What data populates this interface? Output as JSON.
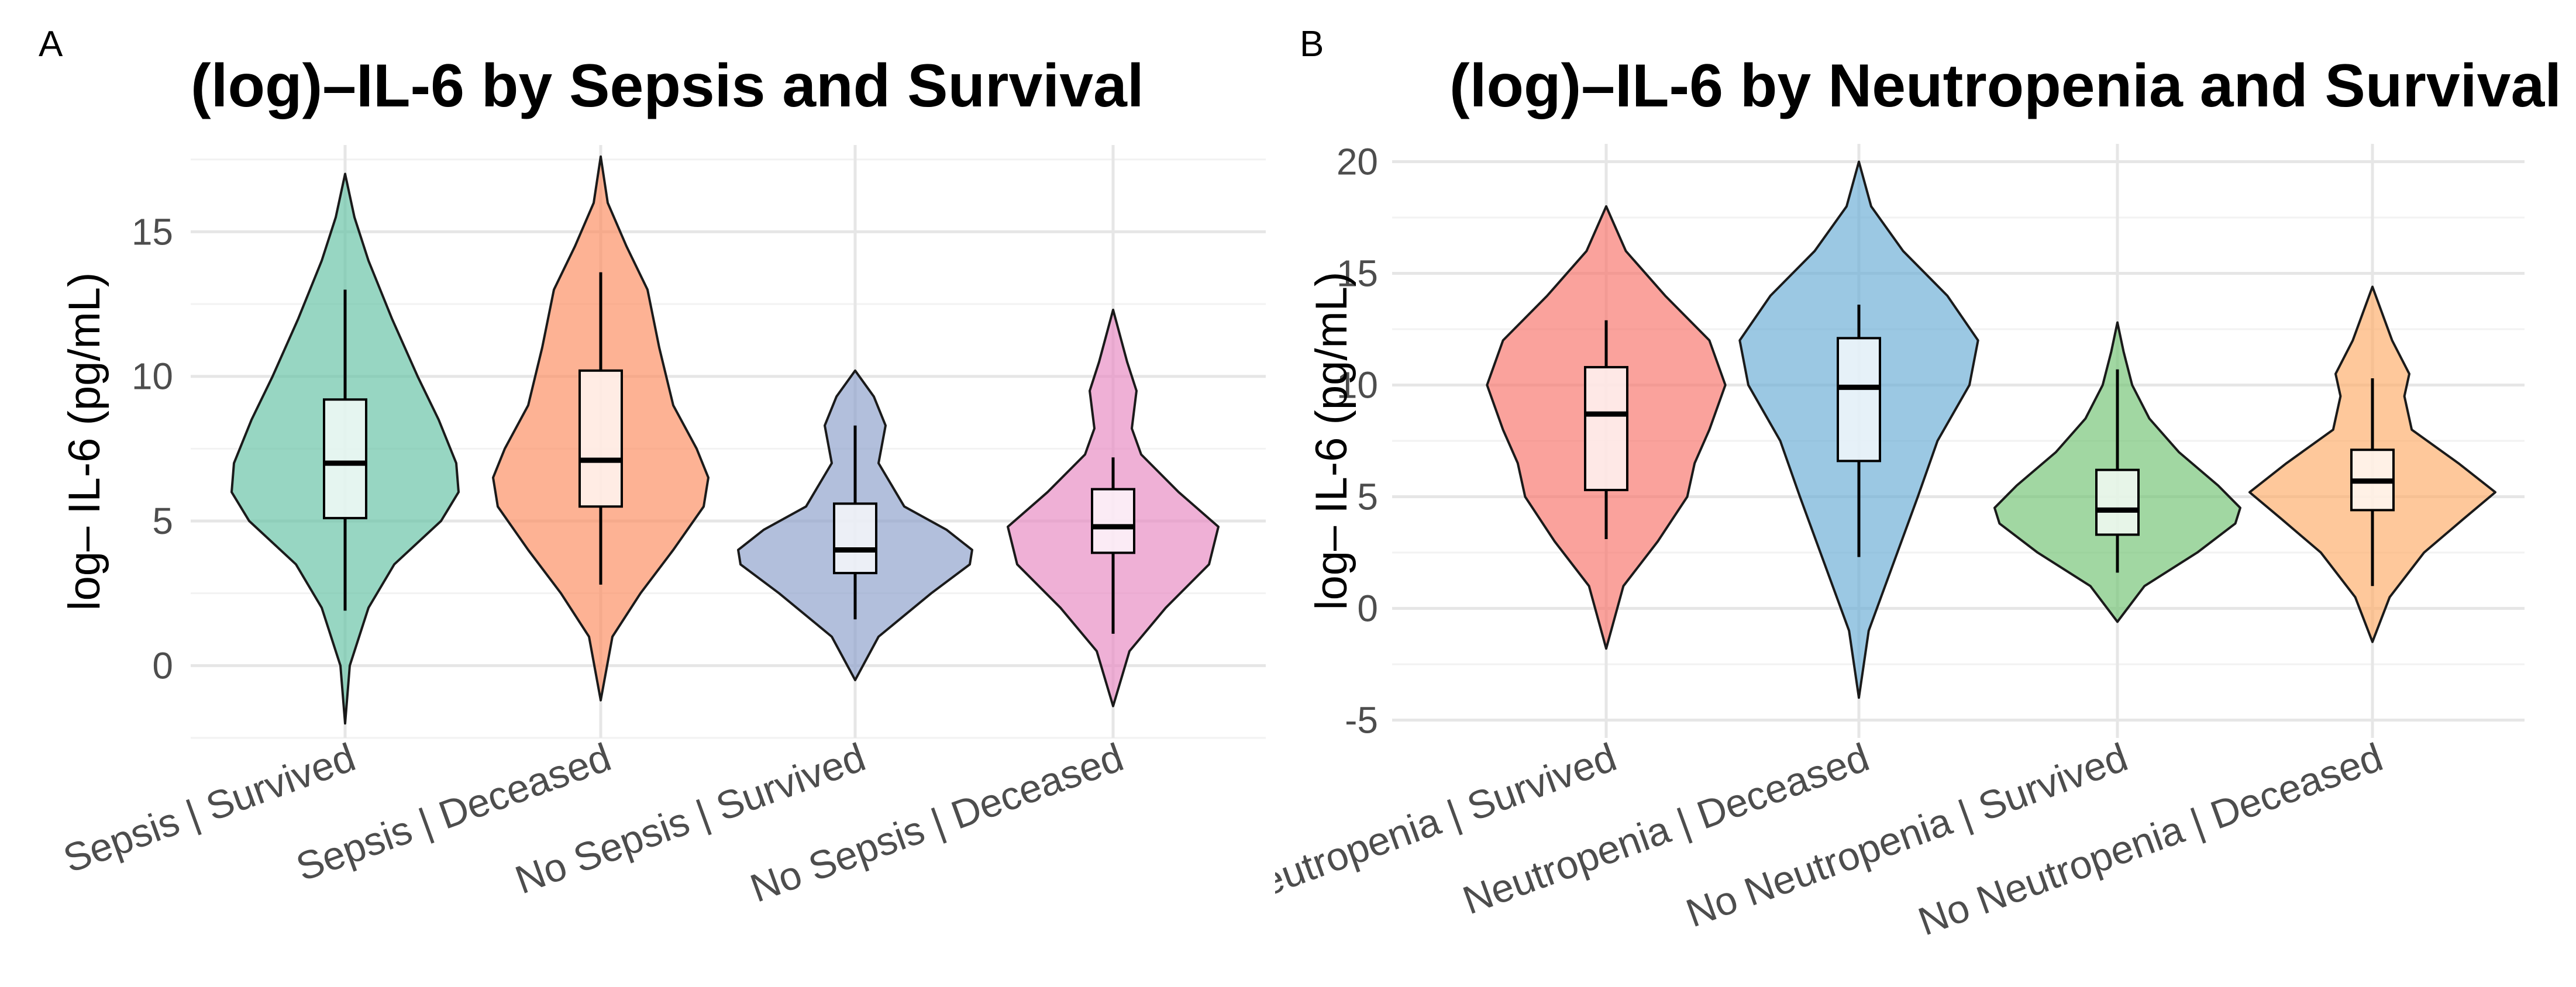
{
  "chart_data": [
    {
      "panel": "A",
      "type": "violin",
      "title": "(log)–IL-6 by Sepsis and Survival",
      "xlabel": "",
      "ylabel": "log– IL-6 (pg/mL)",
      "ylim": [
        -2.5,
        18
      ],
      "yticks": [
        0,
        5,
        10,
        15
      ],
      "ytick_labels": [
        "0",
        "5",
        "10",
        "15"
      ],
      "grid": true,
      "categories": [
        "Sepsis | Survived",
        "Sepsis | Deceased",
        "No Sepsis | Survived",
        "No Sepsis | Deceased"
      ],
      "colors": [
        "#66c2a5",
        "#fc8d62",
        "#8da0cb",
        "#e78ac3"
      ],
      "violins": [
        {
          "min": -2.0,
          "max": 17.0,
          "profile": [
            [
              -2.0,
              0.0
            ],
            [
              0.0,
              0.04
            ],
            [
              2.0,
              0.2
            ],
            [
              3.5,
              0.42
            ],
            [
              5.0,
              0.82
            ],
            [
              6.0,
              0.97
            ],
            [
              7.0,
              0.95
            ],
            [
              8.5,
              0.8
            ],
            [
              10.0,
              0.62
            ],
            [
              12.0,
              0.4
            ],
            [
              14.0,
              0.2
            ],
            [
              15.5,
              0.08
            ],
            [
              17.0,
              0.0
            ]
          ]
        },
        {
          "min": -1.2,
          "max": 17.6,
          "profile": [
            [
              -1.2,
              0.0
            ],
            [
              1.0,
              0.1
            ],
            [
              2.5,
              0.34
            ],
            [
              4.0,
              0.62
            ],
            [
              5.5,
              0.88
            ],
            [
              6.5,
              0.92
            ],
            [
              7.5,
              0.82
            ],
            [
              9.0,
              0.62
            ],
            [
              11.0,
              0.5
            ],
            [
              13.0,
              0.4
            ],
            [
              14.5,
              0.22
            ],
            [
              16.0,
              0.06
            ],
            [
              17.6,
              0.0
            ]
          ]
        },
        {
          "min": -0.5,
          "max": 10.2,
          "profile": [
            [
              -0.5,
              0.0
            ],
            [
              1.0,
              0.2
            ],
            [
              2.5,
              0.65
            ],
            [
              3.5,
              0.98
            ],
            [
              4.0,
              1.0
            ],
            [
              4.7,
              0.78
            ],
            [
              5.5,
              0.42
            ],
            [
              7.0,
              0.2
            ],
            [
              8.3,
              0.26
            ],
            [
              9.3,
              0.16
            ],
            [
              10.2,
              0.0
            ]
          ]
        },
        {
          "min": -1.4,
          "max": 12.3,
          "profile": [
            [
              -1.4,
              0.0
            ],
            [
              0.5,
              0.14
            ],
            [
              2.0,
              0.45
            ],
            [
              3.5,
              0.82
            ],
            [
              4.8,
              0.9
            ],
            [
              6.0,
              0.56
            ],
            [
              7.3,
              0.24
            ],
            [
              8.2,
              0.16
            ],
            [
              9.5,
              0.2
            ],
            [
              10.5,
              0.12
            ],
            [
              12.3,
              0.0
            ]
          ]
        }
      ],
      "boxes": [
        {
          "q1": 5.1,
          "median": 7.0,
          "q3": 9.2,
          "whisker_low": 1.9,
          "whisker_high": 13.0
        },
        {
          "q1": 5.5,
          "median": 7.1,
          "q3": 10.2,
          "whisker_low": 2.8,
          "whisker_high": 13.6
        },
        {
          "q1": 3.2,
          "median": 4.0,
          "q3": 5.6,
          "whisker_low": 1.6,
          "whisker_high": 8.3
        },
        {
          "q1": 3.9,
          "median": 4.8,
          "q3": 6.1,
          "whisker_low": 1.1,
          "whisker_high": 7.2
        }
      ]
    },
    {
      "panel": "B",
      "type": "violin",
      "title": "(log)–IL-6 by Neutropenia and Survival",
      "xlabel": "",
      "ylabel": "log– IL-6 (pg/mL)",
      "ylim": [
        -5.8,
        20.8
      ],
      "yticks": [
        -5,
        0,
        5,
        10,
        15,
        20
      ],
      "ytick_labels": [
        "-5",
        "0",
        "5",
        "10",
        "15",
        "20"
      ],
      "grid": true,
      "categories": [
        "Neutropenia | Survived",
        "Neutropenia | Deceased",
        "No Neutropenia | Survived",
        "No Neutropenia | Deceased"
      ],
      "colors": [
        "#f8766d",
        "#6baed6",
        "#74c476",
        "#fdae6b"
      ],
      "violins": [
        {
          "min": -1.8,
          "max": 18.0,
          "profile": [
            [
              -1.8,
              0.0
            ],
            [
              1.0,
              0.14
            ],
            [
              3.0,
              0.42
            ],
            [
              5.0,
              0.66
            ],
            [
              6.5,
              0.72
            ],
            [
              8.0,
              0.84
            ],
            [
              10.0,
              0.97
            ],
            [
              12.0,
              0.84
            ],
            [
              14.0,
              0.48
            ],
            [
              16.0,
              0.16
            ],
            [
              18.0,
              0.0
            ]
          ]
        },
        {
          "min": -4.0,
          "max": 20.0,
          "profile": [
            [
              -4.0,
              0.0
            ],
            [
              -1.0,
              0.08
            ],
            [
              2.0,
              0.28
            ],
            [
              5.0,
              0.48
            ],
            [
              7.5,
              0.64
            ],
            [
              10.0,
              0.9
            ],
            [
              12.0,
              0.97
            ],
            [
              14.0,
              0.72
            ],
            [
              16.0,
              0.36
            ],
            [
              18.0,
              0.1
            ],
            [
              20.0,
              0.0
            ]
          ]
        },
        {
          "min": -0.6,
          "max": 12.8,
          "profile": [
            [
              -0.6,
              0.0
            ],
            [
              1.0,
              0.22
            ],
            [
              2.5,
              0.65
            ],
            [
              3.8,
              0.96
            ],
            [
              4.5,
              1.0
            ],
            [
              5.5,
              0.82
            ],
            [
              7.0,
              0.5
            ],
            [
              8.5,
              0.26
            ],
            [
              10.0,
              0.12
            ],
            [
              11.5,
              0.05
            ],
            [
              12.8,
              0.0
            ]
          ]
        },
        {
          "min": -1.5,
          "max": 14.4,
          "profile": [
            [
              -1.5,
              0.0
            ],
            [
              0.5,
              0.14
            ],
            [
              2.5,
              0.42
            ],
            [
              4.0,
              0.74
            ],
            [
              5.2,
              1.0
            ],
            [
              6.5,
              0.7
            ],
            [
              8.0,
              0.32
            ],
            [
              9.5,
              0.26
            ],
            [
              10.5,
              0.3
            ],
            [
              12.0,
              0.16
            ],
            [
              14.4,
              0.0
            ]
          ]
        }
      ],
      "boxes": [
        {
          "q1": 5.3,
          "median": 8.7,
          "q3": 10.8,
          "whisker_low": 3.1,
          "whisker_high": 12.9
        },
        {
          "q1": 6.6,
          "median": 9.9,
          "q3": 12.1,
          "whisker_low": 2.3,
          "whisker_high": 13.6
        },
        {
          "q1": 3.3,
          "median": 4.4,
          "q3": 6.2,
          "whisker_low": 1.6,
          "whisker_high": 10.7
        },
        {
          "q1": 4.4,
          "median": 5.7,
          "q3": 7.1,
          "whisker_low": 1.0,
          "whisker_high": 10.3
        }
      ]
    }
  ]
}
